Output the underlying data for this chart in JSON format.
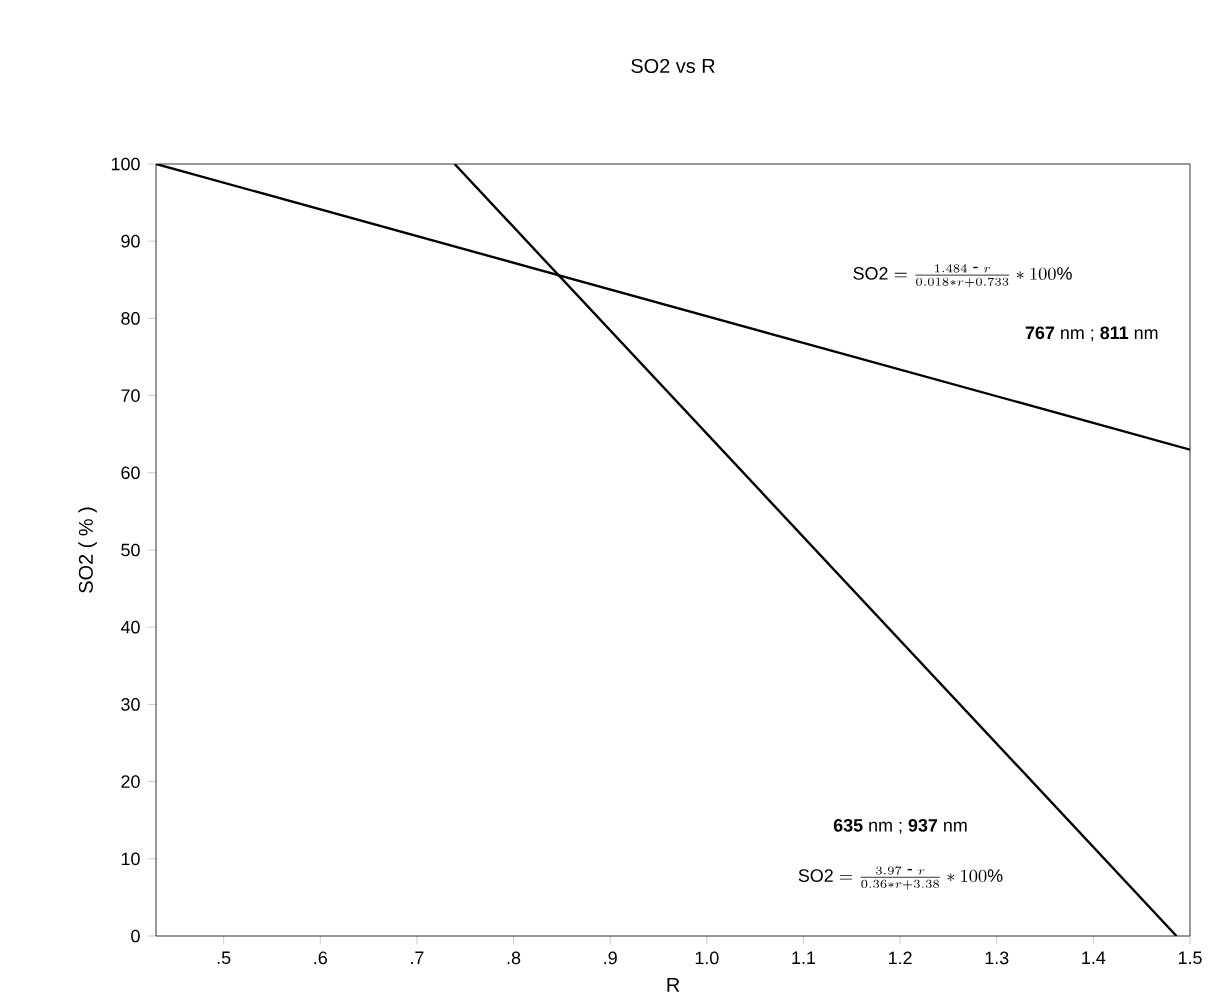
{
  "chart_data": {
    "type": "line",
    "title": "SO2  vs  R",
    "xlabel": "R",
    "ylabel": "SO2 ( % )",
    "series": [
      {
        "color": "#000000",
        "x": [
          0.43,
          1.5
        ],
        "values": [
          100,
          63
        ]
      },
      {
        "color": "#000000",
        "x": [
          0.739,
          1.486
        ],
        "values": [
          100,
          0
        ]
      }
    ],
    "xlim": [
      0.43,
      1.5
    ],
    "ylim": [
      0,
      100
    ],
    "xticks": [
      {
        "value": 0.5,
        "label": ".5"
      },
      {
        "value": 0.6,
        "label": ".6"
      },
      {
        "value": 0.7,
        "label": ".7"
      },
      {
        "value": 0.8,
        "label": ".8"
      },
      {
        "value": 0.9,
        "label": ".9"
      },
      {
        "value": 1.0,
        "label": "1.0"
      },
      {
        "value": 1.1,
        "label": "1.1"
      },
      {
        "value": 1.2,
        "label": "1.2"
      },
      {
        "value": 1.3,
        "label": "1.3"
      },
      {
        "value": 1.4,
        "label": "1.4"
      },
      {
        "value": 1.5,
        "label": "1.5"
      }
    ],
    "yticks": [
      0,
      10,
      20,
      30,
      40,
      50,
      60,
      70,
      80,
      90,
      100
    ],
    "grid": false,
    "marker": "none",
    "line_style": "solid",
    "annotations": [
      "\\mathrm{SO2} = \\frac{1.484\\mbox{ - }r}{0.018 * r + 0.733} * 100\\%",
      "**767** nm ;  **811** nm",
      "**635** nm ;  **937** nm",
      "\\mathrm{SO2} = \\frac{3.97\\mbox{ - }r}{0.36 * r + 3.38} * 100\\%"
    ]
  }
}
